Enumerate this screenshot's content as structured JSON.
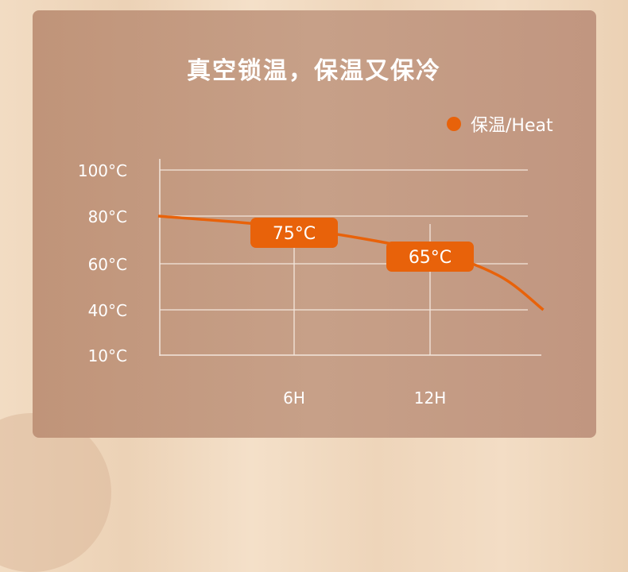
{
  "title": "真空锁温，保温又保冷",
  "colors": {
    "series": "#e8620a",
    "grid": "#f3e6dc",
    "text": "#ffffff"
  },
  "chart_data": {
    "type": "line",
    "title": "真空锁温，保温又保冷",
    "legend": {
      "position": "top-right",
      "entries": [
        "保温/Heat"
      ]
    },
    "y_ticks": [
      {
        "value": 10,
        "label": "10°C"
      },
      {
        "value": 40,
        "label": "40°C"
      },
      {
        "value": 60,
        "label": "60°C"
      },
      {
        "value": 80,
        "label": "80°C"
      },
      {
        "value": 100,
        "label": "100°C"
      }
    ],
    "x_ticks": [
      {
        "value": 6,
        "label": "6H"
      },
      {
        "value": 12,
        "label": "12H"
      }
    ],
    "grid": true,
    "series": [
      {
        "name": "保温/Heat",
        "x": [
          0,
          6,
          12,
          15,
          17
        ],
        "y": [
          80,
          75,
          65,
          55,
          40
        ]
      }
    ],
    "annotations": [
      {
        "x": 6,
        "y": 75,
        "label": "75°C"
      },
      {
        "x": 12,
        "y": 65,
        "label": "65°C"
      }
    ]
  }
}
